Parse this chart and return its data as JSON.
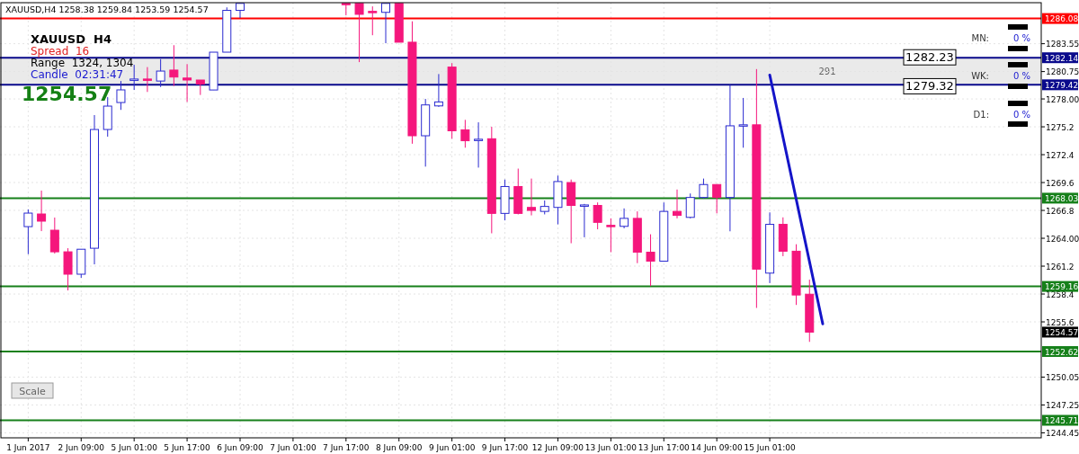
{
  "chart_data": {
    "type": "candlestick",
    "title": "XAUUSD,H4 1258.38 1259.84 1253.59 1254.57",
    "subtitle": "XAUUSD  H4",
    "categories": [
      "1 Jun 2017",
      null,
      null,
      null,
      "2 Jun 09:00",
      null,
      null,
      null,
      "5 Jun 01:00",
      null,
      null,
      null,
      "5 Jun 17:00",
      null,
      null,
      null,
      "6 Jun 09:00",
      null,
      null,
      null,
      "7 Jun 01:00",
      null,
      null,
      null,
      "7 Jun 17:00",
      null,
      null,
      null,
      "8 Jun 09:00",
      null,
      null,
      null,
      "9 Jun 01:00",
      null,
      null,
      null,
      "9 Jun 17:00",
      null,
      null,
      null,
      "12 Jun 09:00",
      null,
      null,
      null,
      "13 Jun 01:00",
      null,
      null,
      null,
      "13 Jun 17:00",
      null,
      null,
      null,
      "14 Jun 09:00",
      null,
      null,
      null,
      "15 Jun 01:00",
      null,
      null,
      null,
      null,
      null,
      null,
      null,
      null,
      null,
      null,
      null,
      null,
      null,
      null,
      null,
      null,
      null,
      null,
      null,
      null
    ],
    "ohlc": [
      [
        1265.17,
        1266.9,
        1262.4,
        1266.53
      ],
      [
        1266.44,
        1268.79,
        1264.72,
        1265.72
      ],
      [
        1264.81,
        1266.08,
        1262.46,
        1262.64
      ],
      [
        1262.64,
        1263.0,
        1258.76,
        1260.39
      ],
      [
        1260.39,
        1262.9,
        1260.03,
        1262.9
      ],
      [
        1263.0,
        1276.38,
        1261.38,
        1274.93
      ],
      [
        1274.93,
        1278.18,
        1274.21,
        1277.28
      ],
      [
        1277.64,
        1279.8,
        1276.9,
        1278.91
      ],
      [
        1279.9,
        1281.43,
        1278.9,
        1280.0
      ],
      [
        1280.0,
        1281.2,
        1278.7,
        1279.9
      ],
      [
        1279.8,
        1282.0,
        1279.2,
        1280.8
      ],
      [
        1280.9,
        1283.4,
        1279.3,
        1280.2
      ],
      [
        1280.1,
        1281.5,
        1277.7,
        1279.9
      ],
      [
        1279.9,
        1279.9,
        1278.4,
        1279.5
      ],
      [
        1278.9,
        1282.7,
        1278.9,
        1282.7
      ],
      [
        1282.7,
        1287.2,
        1282.7,
        1286.9
      ],
      [
        1286.9,
        1287.6,
        1286.13,
        1287.6
      ],
      null,
      null,
      null,
      null,
      null,
      null,
      null,
      [
        1287.6,
        1287.6,
        1286.4,
        1287.5
      ],
      [
        1287.6,
        1287.6,
        1281.7,
        1286.5
      ],
      [
        1286.8,
        1287.3,
        1284.4,
        1286.7
      ],
      [
        1286.7,
        1287.6,
        1283.6,
        1287.6
      ],
      [
        1287.6,
        1287.6,
        1283.7,
        1283.7
      ],
      [
        1283.7,
        1285.8,
        1273.5,
        1274.3
      ],
      [
        1274.3,
        1278.0,
        1271.2,
        1277.4
      ],
      [
        1277.3,
        1280.5,
        1277.2,
        1277.7
      ],
      [
        1281.2,
        1281.6,
        1274.0,
        1274.8
      ],
      [
        1274.9,
        1275.9,
        1273.1,
        1273.8
      ],
      [
        1273.9,
        1275.65,
        1271.1,
        1273.95
      ],
      [
        1274.0,
        1275.2,
        1264.5,
        1266.5
      ],
      [
        1266.5,
        1269.9,
        1265.8,
        1269.2
      ],
      [
        1269.2,
        1271.0,
        1266.4,
        1266.5
      ],
      [
        1267.1,
        1270.0,
        1266.3,
        1266.8
      ],
      [
        1266.7,
        1267.8,
        1266.4,
        1267.2
      ],
      [
        1267.1,
        1270.3,
        1265.4,
        1269.7
      ],
      [
        1269.6,
        1269.9,
        1263.5,
        1267.3
      ],
      [
        1267.3,
        1267.45,
        1264.1,
        1267.35
      ],
      [
        1267.3,
        1267.6,
        1264.9,
        1265.6
      ],
      [
        1265.3,
        1266.0,
        1262.6,
        1265.2
      ],
      [
        1265.2,
        1267.0,
        1265.0,
        1266.0
      ],
      [
        1266.0,
        1266.7,
        1261.5,
        1262.6
      ],
      [
        1262.6,
        1264.4,
        1259.2,
        1261.7
      ],
      [
        1261.7,
        1267.6,
        1261.7,
        1266.7
      ],
      [
        1266.7,
        1268.9,
        1266.0,
        1266.3
      ],
      [
        1266.1,
        1268.5,
        1266.0,
        1268.1
      ],
      [
        1268.1,
        1270.0,
        1268.0,
        1269.4
      ],
      [
        1269.4,
        1269.4,
        1266.5,
        1268.1
      ],
      [
        1268.1,
        1279.4,
        1264.7,
        1275.3
      ],
      [
        1275.3,
        1278.1,
        1273.1,
        1275.4
      ],
      [
        1275.4,
        1281.0,
        1257.0,
        1260.9
      ],
      [
        1260.5,
        1266.6,
        1259.5,
        1265.4
      ],
      [
        1265.4,
        1266.1,
        1262.2,
        1262.7
      ],
      [
        1262.7,
        1263.4,
        1257.3,
        1258.3
      ],
      [
        1258.38,
        1259.84,
        1253.59,
        1254.57
      ],
      null,
      null,
      null,
      null,
      null,
      null,
      null,
      null,
      null,
      null,
      null,
      null,
      null,
      null,
      null,
      null,
      null
    ],
    "colors": [
      "#2a2ad0",
      "#f5167c",
      "#f5167c",
      "#f5167c",
      "#2a2ad0",
      "#2a2ad0",
      "#2a2ad0",
      "#2a2ad0",
      "#2a2ad0",
      "#f5167c",
      "#2a2ad0",
      "#f5167c",
      "#f5167c",
      "#f5167c",
      "#2a2ad0",
      "#2a2ad0",
      "#2a2ad0",
      null,
      null,
      null,
      null,
      null,
      null,
      null,
      "#f5167c",
      "#f5167c",
      "#f5167c",
      "#2a2ad0",
      "#f5167c",
      "#f5167c",
      "#2a2ad0",
      "#2a2ad0",
      "#f5167c",
      "#f5167c",
      "#2a2ad0",
      "#f5167c",
      "#2a2ad0",
      "#f5167c",
      "#f5167c",
      "#2a2ad0",
      "#2a2ad0",
      "#f5167c",
      "#2a2ad0",
      "#f5167c",
      "#f5167c",
      "#2a2ad0",
      "#f5167c",
      "#f5167c",
      "#2a2ad0",
      "#f5167c",
      "#2a2ad0",
      "#2a2ad0",
      "#f5167c",
      "#2a2ad0",
      "#2a2ad0",
      "#f5167c",
      "#2a2ad0",
      "#f5167c",
      "#f5167c",
      "#f5167c",
      null,
      null,
      null,
      null,
      null,
      null,
      null,
      null,
      null,
      null,
      null,
      null,
      null,
      null,
      null,
      null,
      null
    ],
    "series": [
      {
        "type": "line",
        "color": "#1414c8",
        "values": [
          null,
          null,
          null,
          null,
          null,
          null,
          null,
          null,
          null,
          null,
          null,
          null,
          null,
          null,
          null,
          null,
          null,
          null,
          null,
          null,
          null,
          null,
          null,
          null,
          null,
          null,
          null,
          null,
          null,
          null,
          null,
          null,
          null,
          null,
          null,
          null,
          null,
          null,
          null,
          null,
          null,
          null,
          null,
          null,
          null,
          null,
          null,
          null,
          null,
          null,
          null,
          null,
          null,
          null,
          null,
          null,
          1280.4,
          null,
          null,
          null,
          1255.4,
          null,
          null,
          null,
          null,
          null,
          null,
          null,
          null,
          null,
          null,
          null,
          null,
          null,
          null,
          null,
          null
        ]
      }
    ],
    "ylim": [
      1243.95,
      1287.67
    ],
    "yticks": [
      1283.55,
      1280.75,
      {
        "value": 1278,
        "label": "1278.00"
      },
      1275.2,
      1272.4,
      1269.6,
      1266.8,
      {
        "value": 1264,
        "label": "1264.00"
      },
      1261.2,
      1258.4,
      1255.6,
      1250.05,
      1247.25,
      1244.45
    ],
    "grid": true,
    "ref_lines": [
      {
        "axis": "y",
        "value": 1286.08,
        "label": "1286.08",
        "color": "#ff0000"
      },
      {
        "axis": "y",
        "value": 1282.14,
        "label": "1282.14",
        "color": "#0a0a8c"
      },
      {
        "axis": "y",
        "value": 1279.42,
        "label": "1279.42",
        "color": "#0a0a8c"
      },
      {
        "axis": "y",
        "value": 1268.03,
        "label": "1268.03",
        "color": "#16801a"
      },
      {
        "axis": "y",
        "value": 1259.16,
        "label": "1259.16",
        "color": "#16801a"
      },
      {
        "axis": "y",
        "value": 1252.62,
        "label": "1252.62",
        "color": "#16801a"
      },
      {
        "axis": "y",
        "value": 1245.71,
        "label": "1245.71",
        "color": "#16801a"
      }
    ],
    "bands": [
      {
        "axis": "y",
        "from": 1279.42,
        "to": 1282.23,
        "label": "291",
        "color": "#dcdcdc"
      }
    ],
    "annotations": [
      "Spread  16",
      "Range  1324, 1304",
      "Candle  02:31:47",
      "1254.57",
      "MN:",
      "0 %",
      "WK:",
      "0 %",
      "D1:",
      "0 %",
      "Scale",
      {
        "text": "1282.23",
        "y": 1282.23
      },
      {
        "text": "1279.32",
        "y": 1279.32
      },
      {
        "text": "1254.57",
        "y": 1254.57
      }
    ]
  }
}
